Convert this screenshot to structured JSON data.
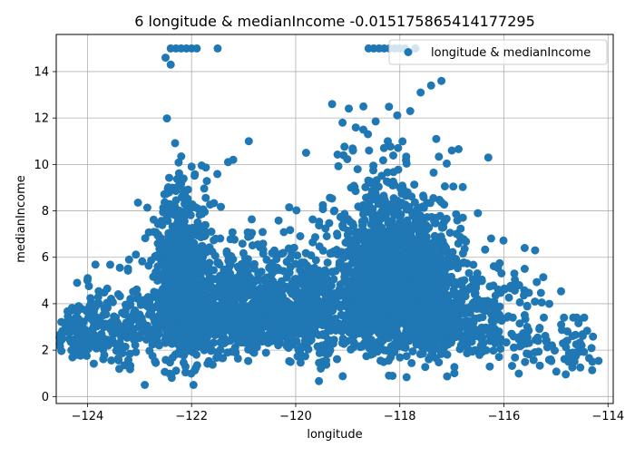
{
  "chart_data": {
    "type": "scatter",
    "title": "6 longitude & medianIncome -0.015175865414177295",
    "xlabel": "longitude",
    "ylabel": "medianIncome",
    "xlim": [
      -124.6,
      -113.9
    ],
    "ylim": [
      -0.3,
      15.6
    ],
    "xticks": [
      -124,
      -122,
      -120,
      -118,
      -116,
      -114
    ],
    "xtick_labels": [
      "−124",
      "−122",
      "−120",
      "−118",
      "−116",
      "−114"
    ],
    "yticks": [
      0,
      2,
      4,
      6,
      8,
      10,
      12,
      14
    ],
    "ytick_labels": [
      "0",
      "2",
      "4",
      "6",
      "8",
      "10",
      "12",
      "14"
    ],
    "grid": true,
    "legend": {
      "position": "upper-right",
      "entries": [
        "longitude & medianIncome"
      ]
    },
    "marker_color": "#1f77b4",
    "series": [
      {
        "name": "longitude & medianIncome",
        "clusters": [
          {
            "center": -124.1,
            "spread": 0.25,
            "ymean": 2.6,
            "ysd": 0.9,
            "ymax": 5.1,
            "count": 120
          },
          {
            "center": -123.3,
            "spread": 0.35,
            "ymean": 2.9,
            "ysd": 1.2,
            "ymax": 6.0,
            "count": 140
          },
          {
            "center": -122.2,
            "spread": 0.28,
            "ymean": 4.3,
            "ysd": 2.2,
            "ymax": 15.0,
            "count": 950
          },
          {
            "center": -121.2,
            "spread": 0.6,
            "ymean": 3.7,
            "ysd": 1.6,
            "ymax": 11.0,
            "count": 500
          },
          {
            "center": -120.6,
            "spread": 0.5,
            "ymean": 3.3,
            "ysd": 1.2,
            "ymax": 7.6,
            "count": 260
          },
          {
            "center": -119.7,
            "spread": 0.35,
            "ymean": 3.5,
            "ysd": 1.7,
            "ymax": 10.5,
            "count": 300
          },
          {
            "center": -118.3,
            "spread": 0.45,
            "ymean": 4.6,
            "ysd": 2.3,
            "ymax": 15.0,
            "count": 1300
          },
          {
            "center": -117.4,
            "spread": 0.35,
            "ymean": 4.2,
            "ysd": 2.0,
            "ymax": 13.6,
            "count": 650
          },
          {
            "center": -116.6,
            "spread": 0.35,
            "ymean": 3.0,
            "ysd": 1.3,
            "ymax": 10.3,
            "count": 200
          },
          {
            "center": -115.6,
            "spread": 0.3,
            "ymean": 2.7,
            "ysd": 1.3,
            "ymax": 6.4,
            "count": 70
          },
          {
            "center": -114.6,
            "spread": 0.2,
            "ymean": 1.9,
            "ysd": 0.8,
            "ymax": 3.4,
            "count": 40
          }
        ],
        "capped_points": [
          {
            "x": -122.4,
            "y": 15.0
          },
          {
            "x": -122.3,
            "y": 15.0
          },
          {
            "x": -122.2,
            "y": 15.0
          },
          {
            "x": -122.1,
            "y": 15.0
          },
          {
            "x": -122.0,
            "y": 15.0
          },
          {
            "x": -121.9,
            "y": 15.0
          },
          {
            "x": -121.5,
            "y": 15.0
          },
          {
            "x": -118.6,
            "y": 15.0
          },
          {
            "x": -118.5,
            "y": 15.0
          },
          {
            "x": -118.4,
            "y": 15.0
          },
          {
            "x": -118.3,
            "y": 15.0
          },
          {
            "x": -118.2,
            "y": 15.0
          },
          {
            "x": -118.1,
            "y": 15.0
          },
          {
            "x": -118.0,
            "y": 15.0
          },
          {
            "x": -117.9,
            "y": 15.0
          },
          {
            "x": -117.7,
            "y": 15.0
          }
        ],
        "outliers": [
          {
            "x": -124.3,
            "y": 3.0
          },
          {
            "x": -124.2,
            "y": 4.9
          },
          {
            "x": -124.0,
            "y": 5.0
          },
          {
            "x": -123.2,
            "y": 5.9
          },
          {
            "x": -122.9,
            "y": 0.5
          },
          {
            "x": -122.5,
            "y": 14.6
          },
          {
            "x": -122.4,
            "y": 14.3
          },
          {
            "x": -121.3,
            "y": 10.1
          },
          {
            "x": -121.2,
            "y": 10.2
          },
          {
            "x": -120.9,
            "y": 11.0
          },
          {
            "x": -119.8,
            "y": 10.5
          },
          {
            "x": -119.3,
            "y": 12.6
          },
          {
            "x": -119.1,
            "y": 11.8
          },
          {
            "x": -118.9,
            "y": 10.6
          },
          {
            "x": -118.7,
            "y": 12.5
          },
          {
            "x": -117.8,
            "y": 12.3
          },
          {
            "x": -117.6,
            "y": 13.1
          },
          {
            "x": -117.4,
            "y": 13.4
          },
          {
            "x": -117.2,
            "y": 13.6
          },
          {
            "x": -117.3,
            "y": 11.1
          },
          {
            "x": -117.0,
            "y": 10.6
          },
          {
            "x": -116.3,
            "y": 10.3
          },
          {
            "x": -116.5,
            "y": 7.9
          },
          {
            "x": -115.6,
            "y": 6.4
          },
          {
            "x": -115.6,
            "y": 5.5
          },
          {
            "x": -115.4,
            "y": 6.3
          },
          {
            "x": -115.8,
            "y": 5.3
          },
          {
            "x": -115.1,
            "y": 1.6
          },
          {
            "x": -114.9,
            "y": 3.1
          },
          {
            "x": -114.6,
            "y": 3.4
          },
          {
            "x": -114.3,
            "y": 1.5
          }
        ]
      }
    ]
  }
}
